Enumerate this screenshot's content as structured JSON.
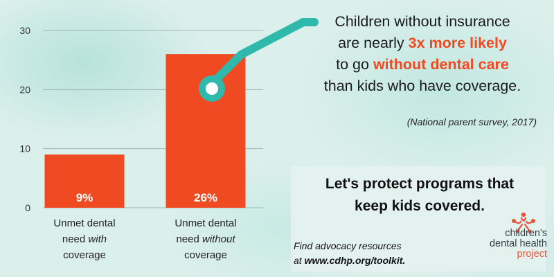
{
  "chart_data": {
    "type": "bar",
    "categories": [
      "Unmet dental need with coverage",
      "Unmet dental need without coverage"
    ],
    "values": [
      9,
      26
    ],
    "data_labels": [
      "9%",
      "26%"
    ],
    "ylim": [
      0,
      30
    ],
    "yticks": [
      0,
      10,
      20,
      30
    ],
    "grid": true,
    "bar_color": "#f04a22"
  },
  "labels": {
    "cat1": {
      "l1": "Unmet dental",
      "l2a": "need ",
      "l2b": "with",
      "l3": "coverage"
    },
    "cat2": {
      "l1": "Unmet dental",
      "l2a": "need ",
      "l2b": "without",
      "l3": "coverage"
    }
  },
  "headline": {
    "line1": "Children without insurance",
    "line2a": "are nearly ",
    "line2b": "3x more likely",
    "line3a": "to go ",
    "line3b": "without dental care",
    "line4": "than kids who have coverage."
  },
  "source": "(National parent survey, 2017)",
  "cta": {
    "line1": "Let's protect programs that",
    "line2": "keep kids covered."
  },
  "advocacy": {
    "line1": "Find advocacy resources",
    "line2a": "at ",
    "line2b": "www.cdhp.org/toolkit."
  },
  "logo": {
    "line1": "children's",
    "line2": "dental health",
    "line3": "project"
  },
  "colors": {
    "accent": "#f04a22",
    "connector": "#2fb8ac",
    "grid": "#9fb6b3"
  }
}
